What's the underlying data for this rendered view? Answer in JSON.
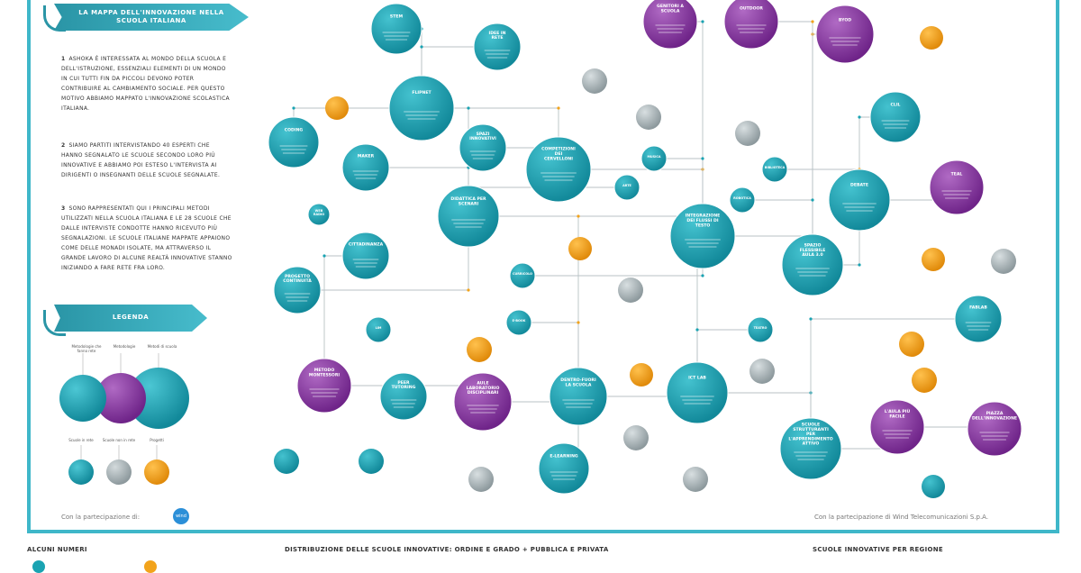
{
  "header": {
    "title_line1": "LA MAPPA DELL'INNOVAZIONE NELLA",
    "title_line2": "SCUOLA ITALIANA"
  },
  "intro": [
    {
      "num": "1",
      "text": "ASHOKA È INTERESSATA AL MONDO DELLA SCUOLA E DELL'ISTRUZIONE, ESSENZIALI ELEMENTI DI UN MONDO IN CUI TUTTI FIN DA PICCOLI DEVONO POTER CONTRIBUIRE AL CAMBIAMENTO SOCIALE. PER QUESTO MOTIVO ABBIAMO MAPPATO L'INNOVAZIONE SCOLASTICA ITALIANA."
    },
    {
      "num": "2",
      "text": "SIAMO PARTITI INTERVISTANDO 40 ESPERTI CHE HANNO SEGNALATO LE SCUOLE SECONDO LORO PIÙ INNOVATIVE E ABBIAMO POI ESTESO L'INTERVISTA AI DIRIGENTI O INSEGNANTI DELLE SCUOLE SEGNALATE."
    },
    {
      "num": "3",
      "text": "SONO RAPPRESENTATI QUI I PRINCIPALI METODI UTILIZZATI NELLA SCUOLA ITALIANA E LE 28 SCUOLE CHE DALLE INTERVISTE CONDOTTE HANNO RICEVUTO PIÙ SEGNALAZIONI. LE SCUOLE ITALIANE MAPPATE APPAIONO COME DELLE MONADI ISOLATE, MA ATTRAVERSO IL GRANDE LAVORO DI ALCUNE REALTÀ INNOVATIVE STANNO INIZIANDO A FARE RETE FRA LORO."
    }
  ],
  "legend": {
    "title": "LEGENDA",
    "labels": [
      "Metodologie che fanno rete",
      "Metodologie",
      "Metodi di scuola",
      "Scuole in rete",
      "Scuole non in rete",
      "Progetti"
    ],
    "colors": {
      "teal": "#1aa3b2",
      "purple": "#8f3fa7",
      "grey": "#a9b4b8",
      "orange": "#f2a31b"
    }
  },
  "footer": {
    "left": "Con la partecipazione di:",
    "logo": "wind",
    "right": "Con la partecipazione di Wind Telecomunicazioni S.p.A."
  },
  "bottom": {
    "numbers_title": "ALCUNI NUMERI",
    "distribution_title": "DISTRIBUZIONE DELLE SCUOLE INNOVATIVE: ORDINE E GRADO + PUBBLICA E PRIVATA",
    "region_title": "SCUOLE INNOVATIVE PER REGIONE"
  },
  "nodes": [
    {
      "label": "FLIPNET"
    },
    {
      "label": "COMPETIZIONI DEI CERVELLONI"
    },
    {
      "label": "DIDATTICA PER SCENARI"
    },
    {
      "label": "INTEGRAZIONE DEI FLUSSI DI TESTO"
    },
    {
      "label": "SPAZIO FLESSIBILE AULA 3.0"
    },
    {
      "label": "METODO MONTESSORI"
    },
    {
      "label": "AULE LABORATORIO DISCIPLINARI"
    },
    {
      "label": "DENTRO-FUORI LA SCUOLA"
    },
    {
      "label": "ICT LAB"
    },
    {
      "label": "DEBATE"
    },
    {
      "label": "TEAL"
    },
    {
      "label": "CLIL"
    },
    {
      "label": "BYOD"
    },
    {
      "label": "L'AULA PIÙ FACILE"
    },
    {
      "label": "PIAZZA DELL'INNOVAZIONE"
    },
    {
      "label": "SCUOLE STRUTTURANTI PER L'APPRENDIMENTO ATTIVO"
    },
    {
      "label": "STEM"
    },
    {
      "label": "IDEE IN RETE"
    },
    {
      "label": "SPAZI INNOVATIVI"
    },
    {
      "label": "CODING"
    },
    {
      "label": "MAKER"
    },
    {
      "label": "CITTADINANZA"
    },
    {
      "label": "PROGETTO CONTINUITÀ"
    },
    {
      "label": "PEER TUTORING"
    },
    {
      "label": "E-LEARNING"
    },
    {
      "label": "GENITORI A SCUOLA"
    },
    {
      "label": "OUTDOOR"
    },
    {
      "label": "FABLAB"
    },
    {
      "label": "CURRICOLO"
    },
    {
      "label": "WEB RADIO"
    },
    {
      "label": "LIM"
    },
    {
      "label": "E-BOOK"
    },
    {
      "label": "MUSICA"
    },
    {
      "label": "ARTE"
    },
    {
      "label": "BIBLIOTECA"
    },
    {
      "label": "ROBOTICA"
    },
    {
      "label": "TEATRO"
    }
  ]
}
